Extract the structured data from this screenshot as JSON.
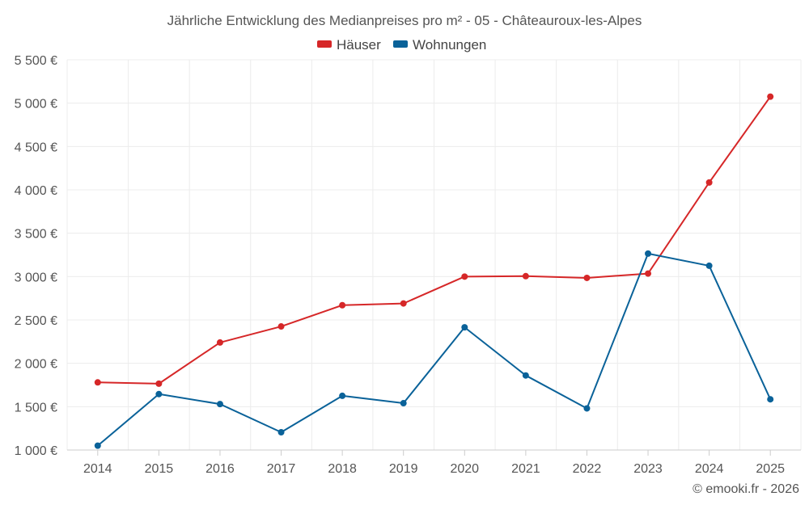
{
  "chart_data": {
    "type": "line",
    "title": "Jährliche Entwicklung des Medianpreises pro m² - 05 - Châteauroux-les-Alpes",
    "categories": [
      "2014",
      "2015",
      "2016",
      "2017",
      "2018",
      "2019",
      "2020",
      "2021",
      "2022",
      "2023",
      "2024",
      "2025"
    ],
    "series": [
      {
        "name": "Häuser",
        "color": "#d62728",
        "values": [
          1780,
          1765,
          2240,
          2425,
          2670,
          2690,
          3000,
          3005,
          2985,
          3035,
          4085,
          5075
        ]
      },
      {
        "name": "Wohnungen",
        "color": "#0a6299",
        "values": [
          1050,
          1645,
          1530,
          1205,
          1625,
          1540,
          2415,
          1860,
          1480,
          3265,
          3125,
          1585
        ]
      }
    ],
    "y_ticks": [
      "1 000 €",
      "1 500 €",
      "2 000 €",
      "2 500 €",
      "3 000 €",
      "3 500 €",
      "4 000 €",
      "4 500 €",
      "5 000 €",
      "5 500 €"
    ],
    "y_tick_values": [
      1000,
      1500,
      2000,
      2500,
      3000,
      3500,
      4000,
      4500,
      5000,
      5500
    ],
    "ylim": [
      1000,
      5500
    ],
    "xlabel": "",
    "ylabel": "",
    "grid": true,
    "legend_position": "top-center",
    "credit": "© emooki.fr - 2026"
  }
}
